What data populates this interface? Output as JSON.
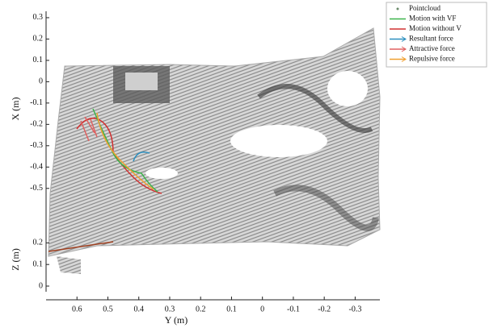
{
  "chart_data": {
    "type": "pointcloud",
    "x_label": "Y (m)",
    "y_label": "X (m)",
    "z_label": "Z (m)",
    "xlim": [
      0.7,
      -0.38
    ],
    "xticks": [
      0.6,
      0.5,
      0.4,
      0.3,
      0.2,
      0.1,
      0,
      -0.1,
      -0.2,
      -0.3
    ],
    "ylim": [
      -0.55,
      0.33
    ],
    "yticks": [
      0.3,
      0.2,
      0.1,
      0,
      -0.1,
      -0.2,
      -0.3,
      -0.4,
      -0.5
    ],
    "zlim": [
      0,
      0.22
    ],
    "zticks": [
      0.2,
      0.1,
      0
    ],
    "legend": [
      {
        "name": "Pointcloud",
        "color": "#6a8a6a",
        "kind": "dot"
      },
      {
        "name": "Motion with VF",
        "color": "#3cb44b",
        "kind": "line"
      },
      {
        "name": "Motion without V",
        "color": "#d03030",
        "kind": "line"
      },
      {
        "name": "Resultant force",
        "color": "#2a8fbf",
        "kind": "arrow"
      },
      {
        "name": "Attractive force",
        "color": "#e06060",
        "kind": "arrow"
      },
      {
        "name": "Repulsive force",
        "color": "#f0a030",
        "kind": "arrow"
      }
    ]
  }
}
